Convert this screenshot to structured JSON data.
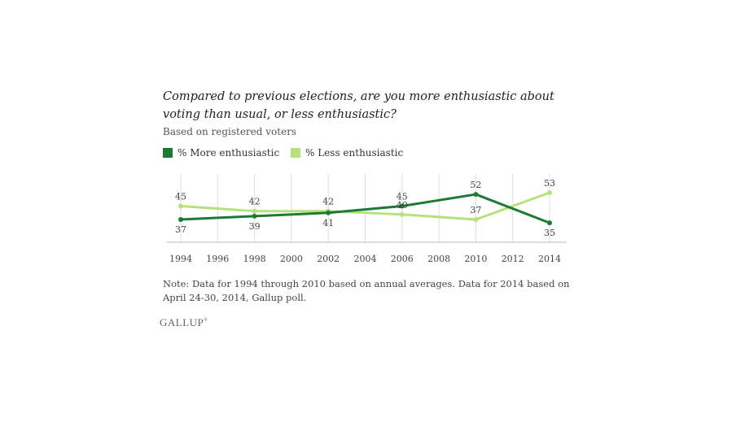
{
  "chart_data": {
    "type": "line",
    "title": "Compared to previous elections, are you more enthusiastic about voting than usual, or less enthusiastic?",
    "subtitle": "Based on registered voters",
    "x": [
      1994,
      1998,
      2002,
      2006,
      2010,
      2014
    ],
    "x_ticks": [
      "1994",
      "1996",
      "1998",
      "2000",
      "2002",
      "2004",
      "2006",
      "2008",
      "2010",
      "2012",
      "2014"
    ],
    "xlim": [
      1994,
      2014
    ],
    "ylim": [
      30,
      58
    ],
    "grid": "vertical",
    "legend_position": "top-left",
    "series": [
      {
        "name": "% More enthusiastic",
        "color": "#1a7a36",
        "values": [
          37,
          39,
          41,
          45,
          52,
          35
        ],
        "label_position": "below-except-2006-2010"
      },
      {
        "name": "% Less enthusiastic",
        "color": "#b5e27a",
        "values": [
          45,
          42,
          42,
          40,
          37,
          53
        ]
      }
    ]
  },
  "note": "Note: Data for 1994 through 2010 based on annual averages. Data for 2014 based on April 24-30, 2014, Gallup poll.",
  "logo": {
    "text": "GALLUP",
    "mark": "®"
  }
}
